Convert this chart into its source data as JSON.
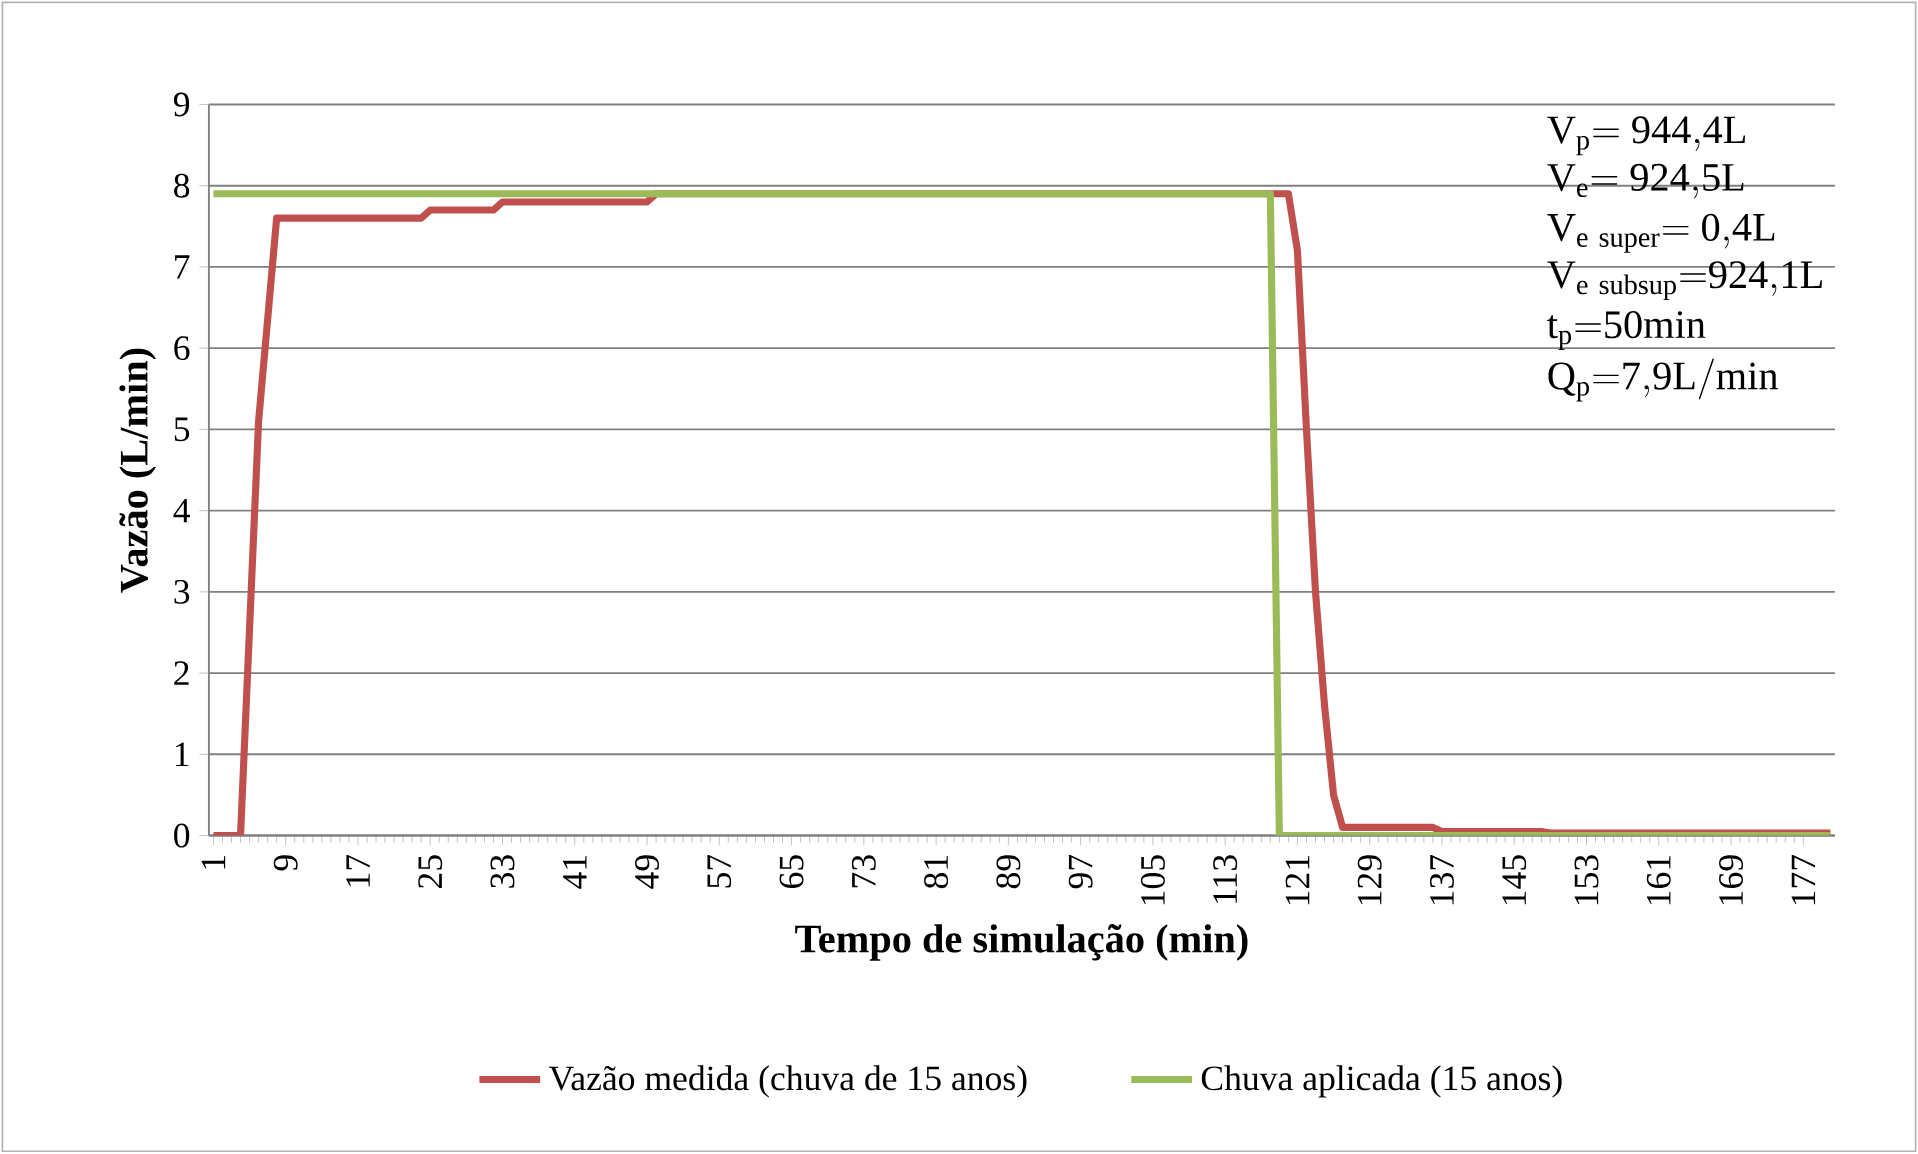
{
  "chart_data": {
    "type": "line",
    "xlabel": "Tempo de simulação (min)",
    "ylabel": "Vazão (L/min)",
    "xlim": [
      0.5,
      180.5
    ],
    "xticks": [
      1,
      9,
      17,
      25,
      33,
      41,
      49,
      57,
      65,
      73,
      81,
      89,
      97,
      105,
      113,
      121,
      129,
      137,
      145,
      153,
      161,
      169,
      177
    ],
    "ylim": [
      0,
      9
    ],
    "yticks": [
      0,
      1,
      2,
      3,
      4,
      5,
      6,
      7,
      8,
      9
    ],
    "grid": "y",
    "legend": "bottom",
    "marker": "none",
    "line_style": "solid",
    "series": [
      {
        "name": "Vazão medida (chuva de 15 anos)",
        "color": "#c0504d",
        "x": [
          1,
          4,
          6,
          8,
          24,
          25,
          32,
          33,
          49,
          50,
          120,
          121,
          122,
          123,
          124,
          125,
          126,
          136,
          137,
          148,
          149,
          180
        ],
        "values": [
          0,
          0,
          5.1,
          7.6,
          7.6,
          7.7,
          7.7,
          7.8,
          7.8,
          7.9,
          7.9,
          7.2,
          5,
          3,
          1.6,
          0.5,
          0.1,
          0.1,
          0.05,
          0.05,
          0.03,
          0.03
        ]
      },
      {
        "name": "Chuva aplicada (15 anos)",
        "color": "#9bbb59",
        "x": [
          1,
          118,
          119,
          180
        ],
        "values": [
          7.9,
          7.9,
          0,
          0
        ]
      }
    ],
    "annotations": [
      "\\mathrm{V_{p}{=}\\ 944{,}4L}",
      "\\mathrm{V_{e}{=}\\ 924{,}5L}",
      "\\mathrm{V_{e\\ super}{=}\\ 0{,}4L}",
      "\\mathrm{V_{e\\ subsup}{=}924{,}1L}",
      "\\mathrm{t_{p}{=}50min}",
      "\\mathrm{Q_{p}{=}7{,}9L/min}"
    ]
  }
}
